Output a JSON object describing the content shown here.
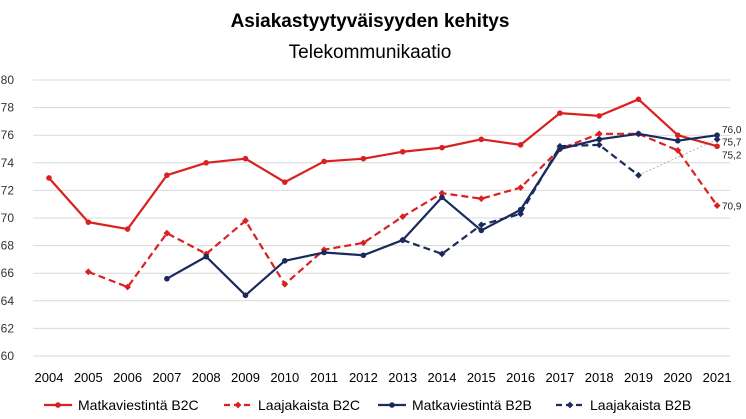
{
  "chart_data": {
    "type": "line",
    "title": "Asiakastyytyväisyyden kehitys",
    "subtitle": "Telekommunikaatio",
    "xlabel": "",
    "ylabel": "",
    "ylim": [
      60,
      80
    ],
    "yticks": [
      "60",
      "62",
      "64",
      "66",
      "68",
      "70",
      "72",
      "74",
      "76",
      "78",
      "80"
    ],
    "categories": [
      "2004",
      "2005",
      "2006",
      "2007",
      "2008",
      "2009",
      "2010",
      "2011",
      "2012",
      "2013",
      "2014",
      "2015",
      "2016",
      "2017",
      "2018",
      "2019",
      "2020",
      "2021"
    ],
    "grid": true,
    "legend_position": "bottom",
    "series": [
      {
        "name": "Matkaviestintä B2C",
        "color": "#d92121",
        "dash": "solid",
        "marker": "circle",
        "values": [
          72.9,
          69.7,
          69.2,
          73.1,
          74.0,
          74.3,
          72.6,
          74.1,
          74.3,
          74.8,
          75.1,
          75.7,
          75.3,
          77.6,
          77.4,
          78.6,
          76.0,
          75.2
        ]
      },
      {
        "name": "Laajakaista B2C",
        "color": "#d92121",
        "dash": "dashed",
        "marker": "diamond",
        "values": [
          null,
          66.1,
          65.0,
          68.9,
          67.4,
          69.8,
          65.2,
          67.7,
          68.2,
          70.1,
          71.8,
          71.4,
          72.2,
          75.0,
          76.1,
          76.1,
          74.9,
          70.9
        ]
      },
      {
        "name": "Matkaviestintä B2B",
        "color": "#1b2a5c",
        "dash": "solid",
        "marker": "circle",
        "values": [
          null,
          null,
          null,
          65.6,
          67.2,
          64.4,
          66.9,
          67.5,
          67.3,
          68.4,
          71.5,
          69.1,
          70.6,
          75.0,
          75.7,
          76.1,
          75.6,
          76.0
        ]
      },
      {
        "name": "Laajakaista B2B",
        "color": "#1b2a5c",
        "dash": "dashed",
        "marker": "diamond",
        "values": [
          null,
          null,
          null,
          null,
          null,
          null,
          null,
          null,
          null,
          68.4,
          67.4,
          69.5,
          70.3,
          75.2,
          75.3,
          73.1,
          null,
          75.7
        ]
      }
    ],
    "connector": {
      "from_year": "2019",
      "to_year": "2021",
      "series": "Laajakaista B2B",
      "color": "#b0b0b0",
      "style": "dotted"
    },
    "end_labels": [
      {
        "text": "76,0",
        "series": "Matkaviestintä B2B"
      },
      {
        "text": "75,7",
        "series": "Laajakaista B2B"
      },
      {
        "text": "75,2",
        "series": "Matkaviestintä B2C"
      },
      {
        "text": "70,9",
        "series": "Laajakaista B2C"
      }
    ]
  }
}
